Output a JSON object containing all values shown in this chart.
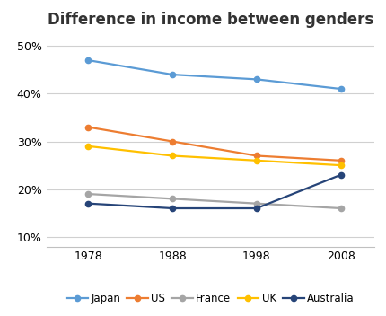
{
  "title": "Difference in income between genders",
  "years": [
    1978,
    1988,
    1998,
    2008
  ],
  "series": {
    "Japan": {
      "values": [
        47,
        44,
        43,
        41
      ],
      "color": "#5b9bd5",
      "marker": "o"
    },
    "US": {
      "values": [
        33,
        30,
        27,
        26
      ],
      "color": "#ed7d31",
      "marker": "o"
    },
    "France": {
      "values": [
        19,
        18,
        17,
        16
      ],
      "color": "#a5a5a5",
      "marker": "o"
    },
    "UK": {
      "values": [
        29,
        27,
        26,
        25
      ],
      "color": "#ffc000",
      "marker": "o"
    },
    "Australia": {
      "values": [
        17,
        16,
        16,
        23
      ],
      "color": "#264478",
      "marker": "o"
    }
  },
  "ylim": [
    8,
    53
  ],
  "yticks": [
    10,
    20,
    30,
    40,
    50
  ],
  "xlim": [
    1973,
    2012
  ],
  "legend_order": [
    "Japan",
    "US",
    "France",
    "UK",
    "Australia"
  ],
  "background_color": "#ffffff",
  "grid_color": "#d0d0d0",
  "title_fontsize": 12,
  "axis_fontsize": 9,
  "legend_fontsize": 8.5
}
